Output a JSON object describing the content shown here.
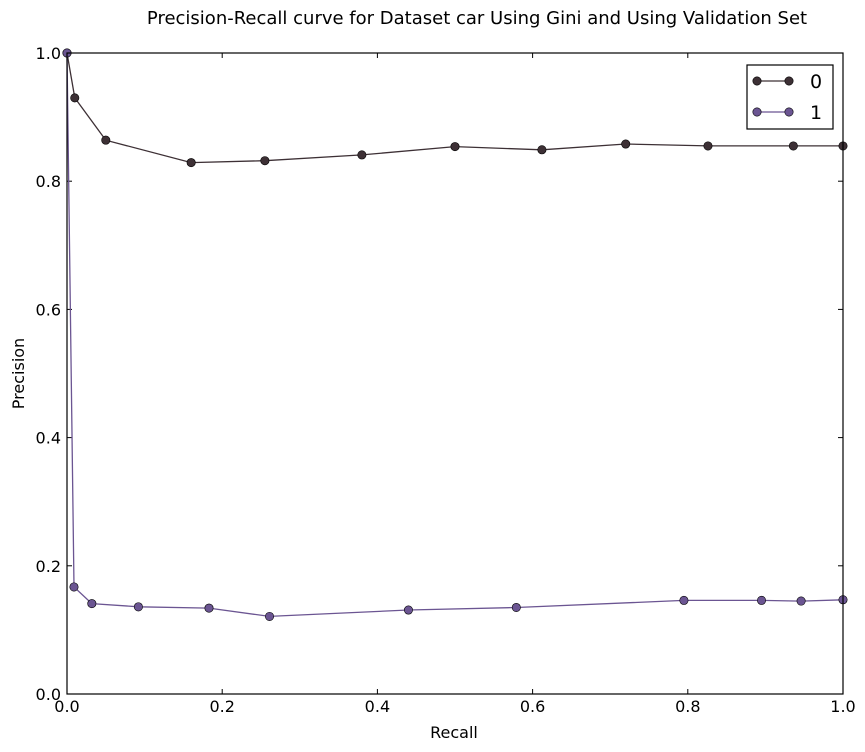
{
  "chart_data": {
    "type": "line",
    "title": "Precision-Recall curve for Dataset car Using Gini and Using Validation Set",
    "xlabel": "Recall",
    "ylabel": "Precision",
    "xlim": [
      0.0,
      1.0
    ],
    "ylim": [
      0.0,
      1.0
    ],
    "xticks": [
      "0.0",
      "0.2",
      "0.4",
      "0.6",
      "0.8",
      "1.0"
    ],
    "yticks": [
      "0.0",
      "0.2",
      "0.4",
      "0.6",
      "0.8",
      "1.0"
    ],
    "grid": false,
    "legend_position": "top-right",
    "series": [
      {
        "name": "0",
        "color": "#3d3035",
        "x": [
          0.0,
          0.01,
          0.05,
          0.16,
          0.255,
          0.38,
          0.5,
          0.612,
          0.72,
          0.826,
          0.936,
          1.0
        ],
        "y": [
          1.0,
          0.93,
          0.864,
          0.829,
          0.832,
          0.841,
          0.854,
          0.849,
          0.858,
          0.855,
          0.855,
          0.855
        ]
      },
      {
        "name": "1",
        "color": "#6b5592",
        "x": [
          0.0,
          0.009,
          0.032,
          0.092,
          0.183,
          0.261,
          0.44,
          0.579,
          0.795,
          0.895,
          0.946,
          1.0
        ],
        "y": [
          1.0,
          0.167,
          0.141,
          0.136,
          0.134,
          0.121,
          0.131,
          0.135,
          0.146,
          0.146,
          0.145,
          0.147
        ]
      }
    ]
  }
}
